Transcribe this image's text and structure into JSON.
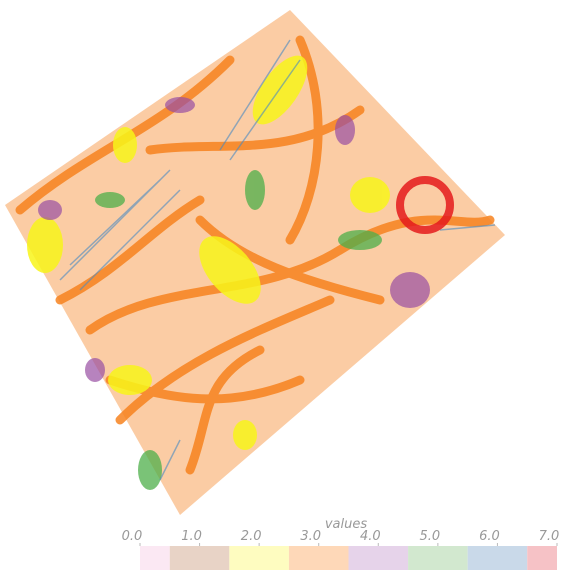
{
  "colorbar": {
    "title": "values",
    "lim": [
      0,
      7
    ],
    "ticks": [
      {
        "value": 0,
        "label": "0.0"
      },
      {
        "value": 1,
        "label": "1.0"
      },
      {
        "value": 2,
        "label": "2.0"
      },
      {
        "value": 3,
        "label": "3.0"
      },
      {
        "value": 4,
        "label": "4.0"
      },
      {
        "value": 5,
        "label": "5.0"
      },
      {
        "value": 6,
        "label": "6.0"
      },
      {
        "value": 7,
        "label": "7.0"
      }
    ],
    "colors": [
      "#fbe8f3",
      "#e8d3c6",
      "#fefcc0",
      "#fed8b8",
      "#e6d3ea",
      "#d2e8cf",
      "#c9d9e9",
      "#f6c2c6"
    ]
  }
}
